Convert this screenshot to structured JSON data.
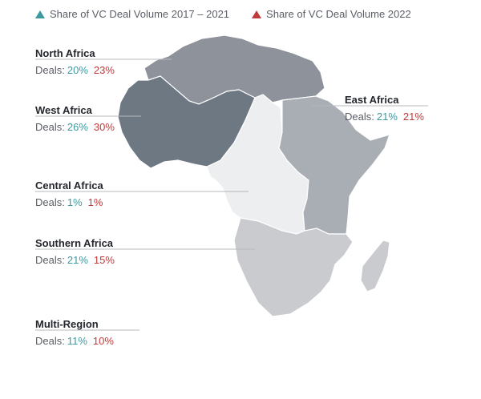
{
  "legend": {
    "items": [
      {
        "label": "Share of VC Deal Volume 2017 – 2021",
        "color": "#3a9aa0"
      },
      {
        "label": "Share of VC Deal Volume 2022",
        "color": "#c0393b"
      }
    ]
  },
  "deals_label": "Deals:",
  "colors": {
    "north_africa": "#8e929b",
    "west_africa": "#6e7883",
    "east_africa": "#a9adb4",
    "central_africa": "#eceef0",
    "southern_africa": "#c9cbcf",
    "madagascar": "#c9cbcf",
    "accent_2017_2021": "#3a9aa0",
    "accent_2022": "#c0393b"
  },
  "regions": [
    {
      "name": "North Africa",
      "share_2017_2021": "20%",
      "share_2022": "23%"
    },
    {
      "name": "West Africa",
      "share_2017_2021": "26%",
      "share_2022": "30%"
    },
    {
      "name": "East Africa",
      "share_2017_2021": "21%",
      "share_2022": "21%"
    },
    {
      "name": "Central Africa",
      "share_2017_2021": "1%",
      "share_2022": "1%"
    },
    {
      "name": "Southern Africa",
      "share_2017_2021": "21%",
      "share_2022": "15%"
    },
    {
      "name": "Multi-Region",
      "share_2017_2021": "11%",
      "share_2022": "10%"
    }
  ]
}
